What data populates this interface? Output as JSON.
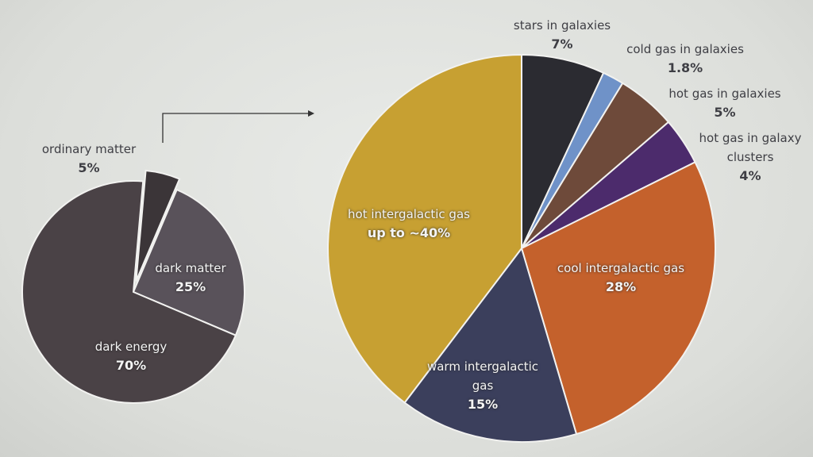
{
  "chart_data": [
    {
      "type": "pie",
      "categories": [
        "ordinary matter",
        "dark matter",
        "dark energy"
      ],
      "values": [
        5,
        25,
        70
      ],
      "value_labels": [
        "5%",
        "25%",
        "70%"
      ],
      "colors": [
        "#3b3538",
        "#59525a",
        "#4a4246"
      ]
    },
    {
      "type": "pie",
      "categories": [
        "stars in galaxies",
        "cold gas in galaxies",
        "hot gas in galaxies",
        "hot gas in galaxy clusters",
        "cool intergalactic gas",
        "warm intergalactic gas",
        "hot intergalactic gas"
      ],
      "values": [
        7,
        1.8,
        5,
        4,
        28,
        15,
        40
      ],
      "value_labels": [
        "7%",
        "1.8%",
        "5%",
        "4%",
        "28%",
        "15%",
        "up to ~40%"
      ],
      "colors": [
        "#2b2b31",
        "#6f92c8",
        "#6e4a3a",
        "#4c2b6c",
        "#c4612c",
        "#3b3f5c",
        "#c7a032"
      ]
    }
  ]
}
